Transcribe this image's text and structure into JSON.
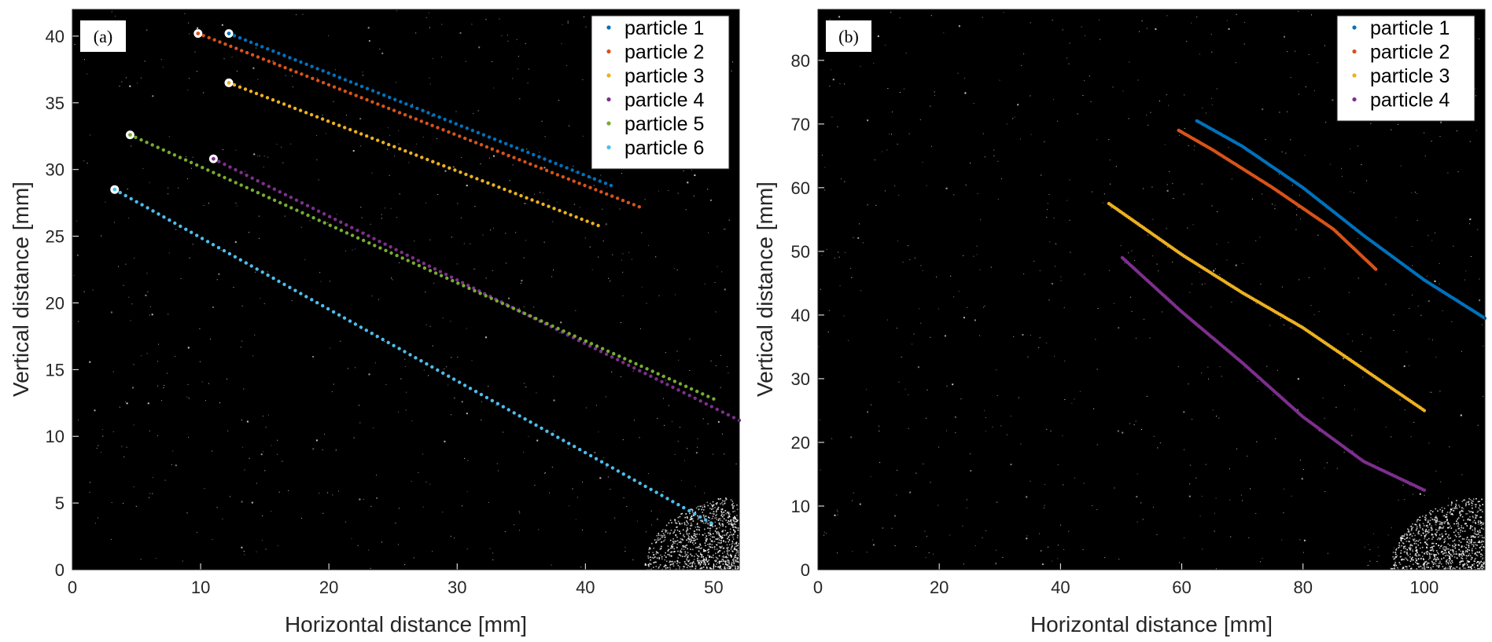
{
  "chart_data": [
    {
      "type": "scatter",
      "panel_label": "(a)",
      "xlabel": "Horizontal distance [mm]",
      "ylabel": "Vertical distance [mm]",
      "xlim": [
        0,
        52
      ],
      "ylim": [
        0,
        42
      ],
      "xticks": [
        0,
        10,
        20,
        30,
        40,
        50
      ],
      "yticks": [
        0,
        5,
        10,
        15,
        20,
        25,
        30,
        35,
        40
      ],
      "background": "#000000",
      "legend_position": "top-right",
      "series": [
        {
          "name": "particle 1",
          "color": "#0072BD",
          "start": [
            12.2,
            40.2
          ],
          "end": [
            42.0,
            28.8
          ],
          "n": 70
        },
        {
          "name": "particle 2",
          "color": "#D95319",
          "start": [
            9.8,
            40.2
          ],
          "end": [
            44.2,
            27.2
          ],
          "n": 82
        },
        {
          "name": "particle 3",
          "color": "#EDB120",
          "start": [
            12.2,
            36.5
          ],
          "end": [
            41.0,
            25.8
          ],
          "n": 68
        },
        {
          "name": "particle 4",
          "color": "#7E2F8E",
          "start": [
            11.0,
            30.8
          ],
          "end": [
            52.0,
            11.2
          ],
          "n": 96
        },
        {
          "name": "particle 5",
          "color": "#77AC30",
          "start": [
            4.5,
            32.6
          ],
          "end": [
            50.0,
            12.8
          ],
          "n": 106
        },
        {
          "name": "particle 6",
          "color": "#4DBEEE",
          "start": [
            3.3,
            28.5
          ],
          "end": [
            49.8,
            3.5
          ],
          "n": 110
        }
      ]
    },
    {
      "type": "scatter",
      "panel_label": "(b)",
      "xlabel": "Horizontal distance [mm]",
      "ylabel": "Vertical distance [mm]",
      "xlim": [
        0,
        110
      ],
      "ylim": [
        0,
        88
      ],
      "xticks": [
        0,
        20,
        40,
        60,
        80,
        100
      ],
      "yticks": [
        0,
        10,
        20,
        30,
        40,
        50,
        60,
        70,
        80
      ],
      "background": "#000000",
      "legend_position": "top-right",
      "series": [
        {
          "name": "particle 1",
          "color": "#0072BD",
          "points": [
            [
              62.5,
              70.5
            ],
            [
              70,
              66.5
            ],
            [
              80,
              60
            ],
            [
              90,
              52.5
            ],
            [
              100,
              45.5
            ],
            [
              110,
              39.5
            ]
          ],
          "n": 160
        },
        {
          "name": "particle 2",
          "color": "#D95319",
          "points": [
            [
              59.5,
              69
            ],
            [
              65,
              66
            ],
            [
              75,
              60
            ],
            [
              85,
              53.5
            ],
            [
              92,
              47.2
            ]
          ],
          "n": 120
        },
        {
          "name": "particle 3",
          "color": "#EDB120",
          "points": [
            [
              48,
              57.5
            ],
            [
              60,
              49.5
            ],
            [
              70,
              43.5
            ],
            [
              80,
              38
            ],
            [
              90,
              31.5
            ],
            [
              100,
              25
            ]
          ],
          "n": 170
        },
        {
          "name": "particle 4",
          "color": "#7E2F8E",
          "points": [
            [
              50.2,
              49
            ],
            [
              60,
              40.5
            ],
            [
              70,
              32.5
            ],
            [
              80,
              24
            ],
            [
              90,
              17
            ],
            [
              100,
              12.5
            ]
          ],
          "n": 170
        }
      ]
    }
  ]
}
